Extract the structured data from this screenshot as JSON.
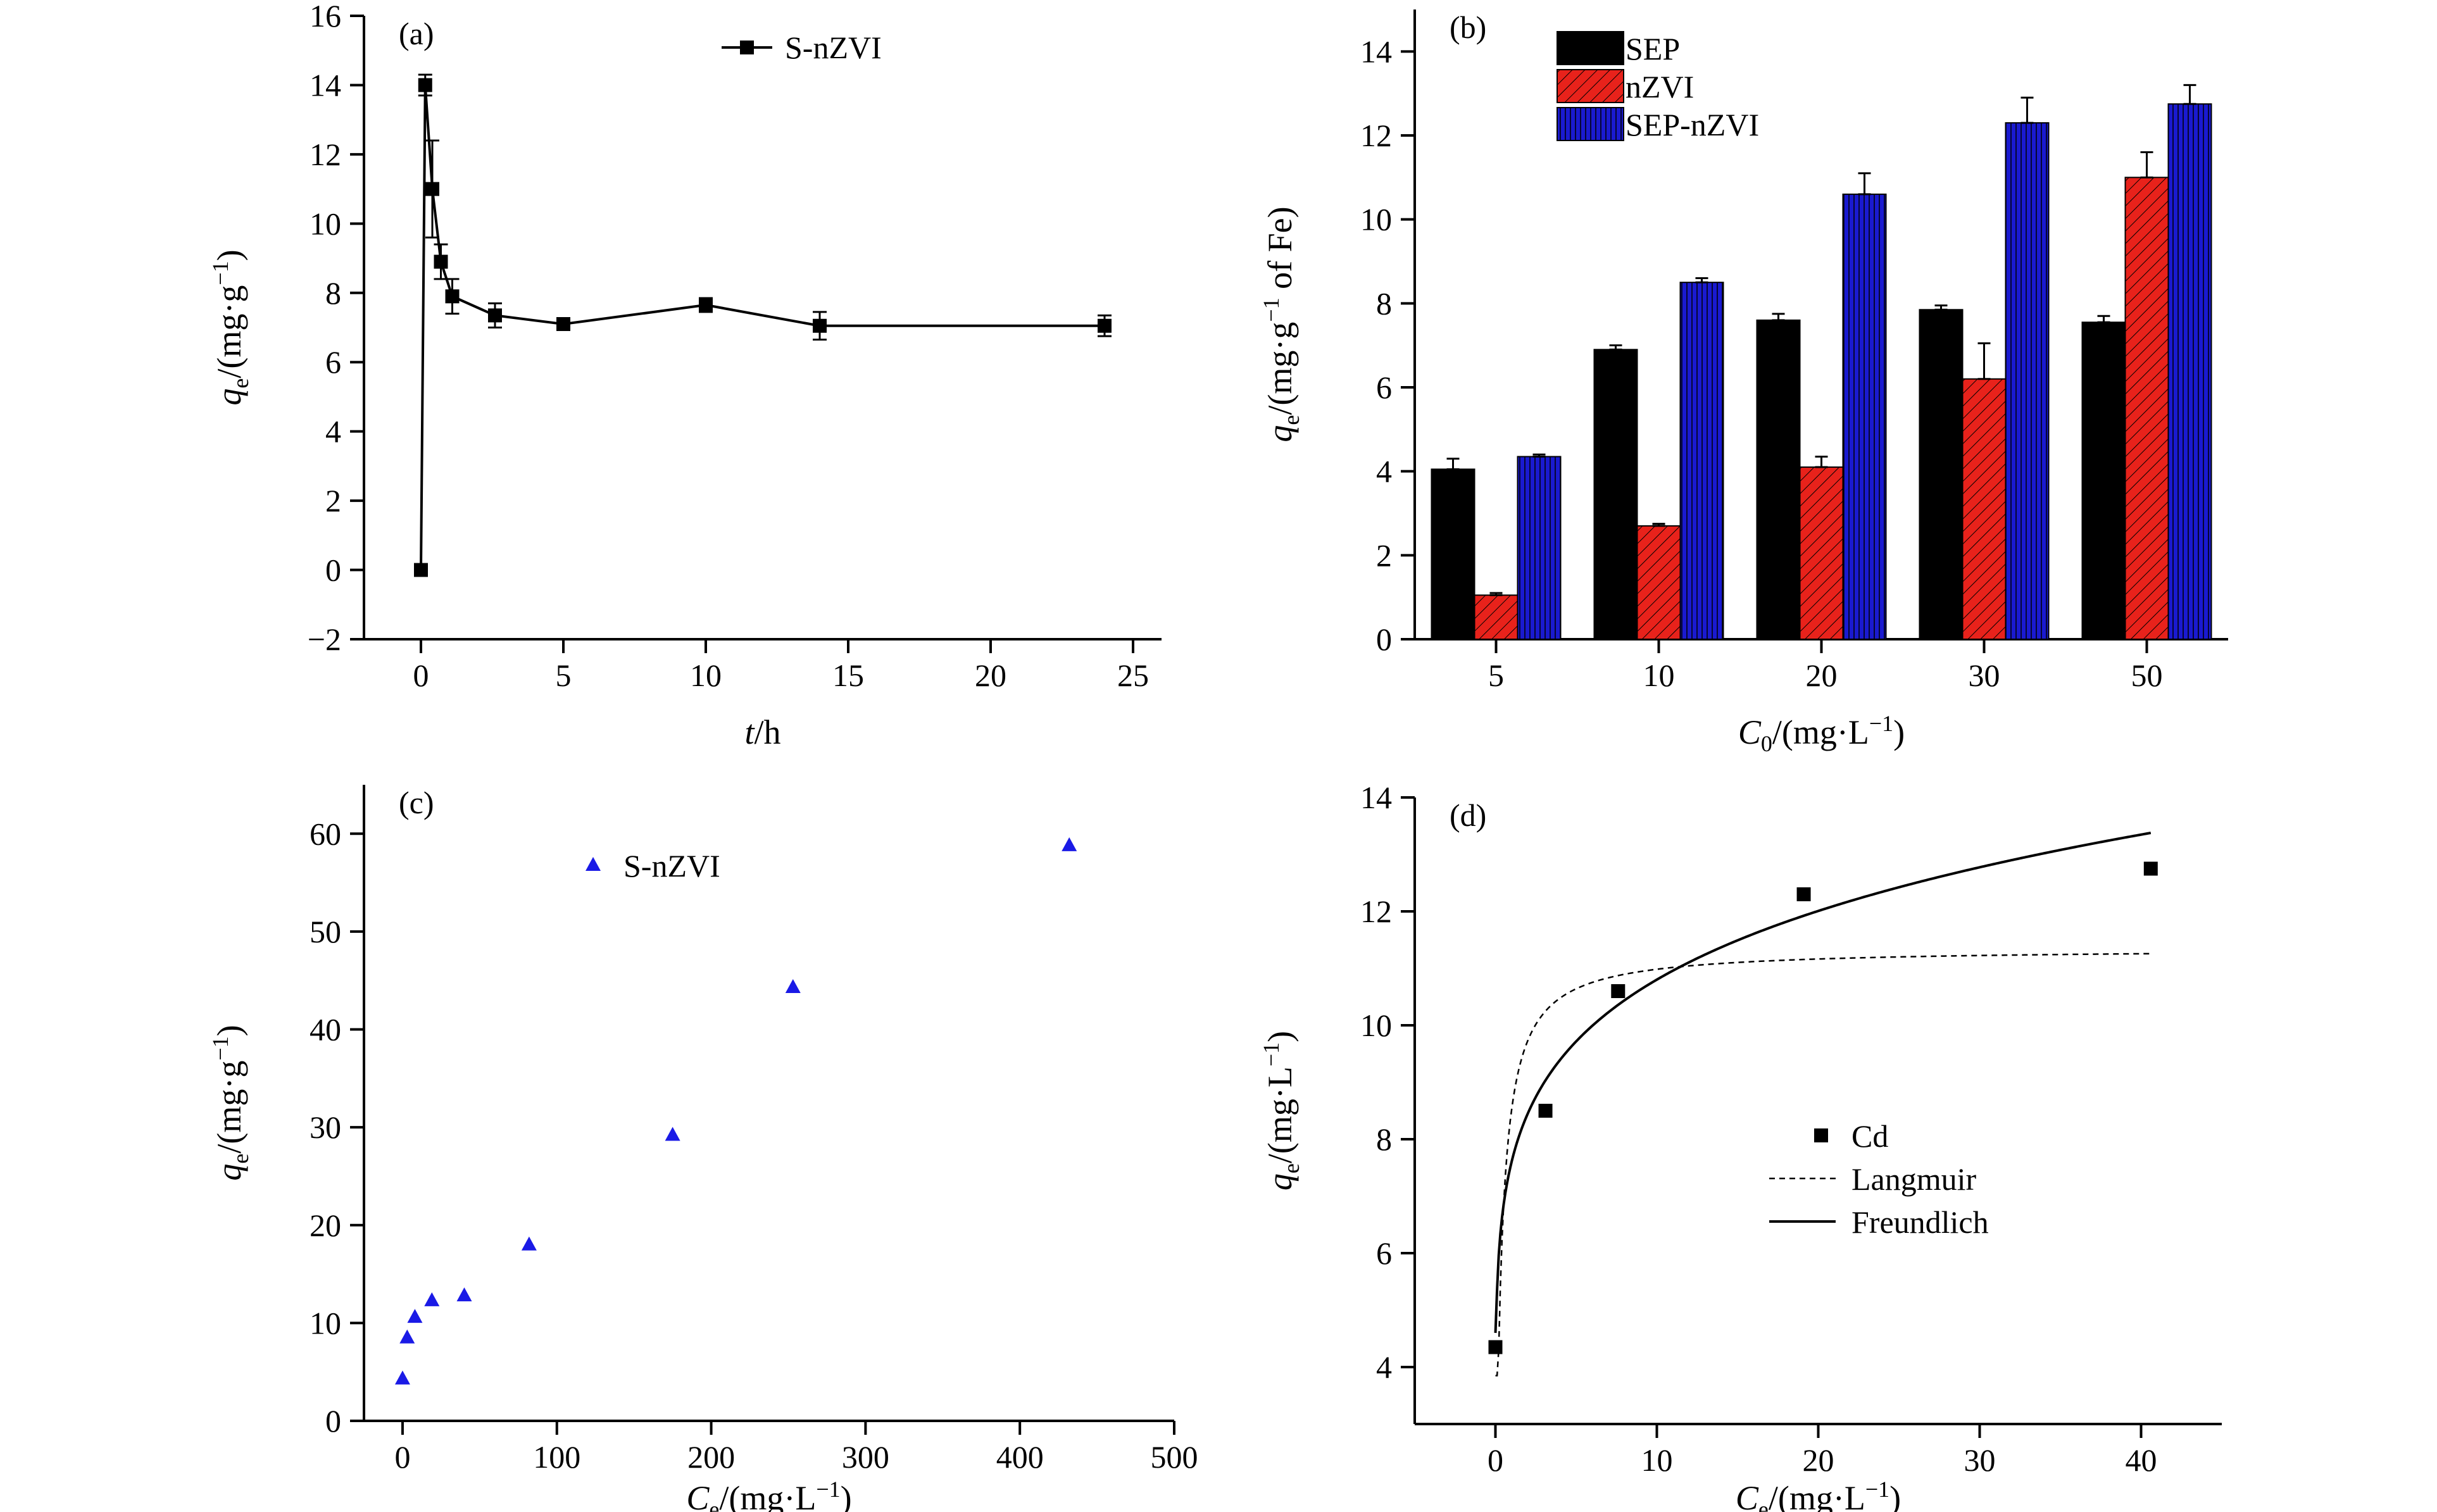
{
  "chart_data": [
    {
      "panel": "(a)",
      "type": "line",
      "xlabel_main": "t",
      "xlabel_rest": "/h",
      "ylabel_main": "q",
      "ylabel_sub": "e",
      "ylabel_rest": "/(mg·g",
      "ylabel_sup": "−1",
      "ylabel_end": ")",
      "xlim": [
        -2,
        26
      ],
      "ylim": [
        -2,
        16
      ],
      "xticks": [
        0,
        5,
        10,
        15,
        20,
        25
      ],
      "yticks": [
        -2,
        0,
        2,
        4,
        6,
        8,
        10,
        12,
        14,
        16
      ],
      "legend": "top-center",
      "series": [
        {
          "name": "S-nZVI",
          "marker": "square",
          "x": [
            0,
            0.15,
            0.4,
            0.7,
            1.1,
            2.6,
            5,
            10,
            14,
            24
          ],
          "y": [
            0,
            14.0,
            11.0,
            8.9,
            7.9,
            7.35,
            7.1,
            7.65,
            7.05,
            7.05
          ],
          "err": [
            0,
            0.3,
            1.4,
            0.5,
            0.5,
            0.35,
            0.1,
            0.2,
            0.4,
            0.3
          ]
        }
      ]
    },
    {
      "panel": "(b)",
      "type": "bar",
      "xlabel_main": "C",
      "xlabel_sub": "0",
      "xlabel_rest": "/(mg·L",
      "xlabel_sup": "−1",
      "xlabel_end": ")",
      "ylabel_main": "q",
      "ylabel_sub": "e",
      "ylabel_rest": "/(mg·g",
      "ylabel_sup": "−1",
      "ylabel_end": " of Fe)",
      "categories": [
        "5",
        "10",
        "20",
        "30",
        "50"
      ],
      "ylim": [
        0,
        15
      ],
      "yticks": [
        0,
        2,
        4,
        6,
        8,
        10,
        12,
        14
      ],
      "legend": "top-left",
      "colors": {
        "SEP": "#000000",
        "nZVI": "#e8221b",
        "SEP-nZVI": "#1a1ad0"
      },
      "series": [
        {
          "name": "SEP",
          "values": [
            4.05,
            6.9,
            7.6,
            7.85,
            7.55
          ],
          "err": [
            0.25,
            0.1,
            0.15,
            0.1,
            0.15
          ]
        },
        {
          "name": "nZVI",
          "values": [
            1.05,
            2.7,
            4.1,
            6.2,
            11.0
          ],
          "err": [
            0.05,
            0.05,
            0.25,
            0.85,
            0.6
          ]
        },
        {
          "name": "SEP-nZVI",
          "values": [
            4.35,
            8.5,
            10.6,
            12.3,
            12.75
          ],
          "err": [
            0.05,
            0.1,
            0.5,
            0.6,
            0.45
          ]
        }
      ]
    },
    {
      "panel": "(c)",
      "type": "scatter",
      "xlabel_main": "C",
      "xlabel_sub": "e",
      "xlabel_rest": "/(mg·L",
      "xlabel_sup": "−1",
      "xlabel_end": ")",
      "ylabel_main": "q",
      "ylabel_sub": "e",
      "ylabel_rest": "/(mg·g",
      "ylabel_sup": "−1",
      "ylabel_end": ")",
      "xlim": [
        -25,
        500
      ],
      "ylim": [
        0,
        65
      ],
      "xticks": [
        0,
        100,
        200,
        300,
        400,
        500
      ],
      "yticks": [
        0,
        10,
        20,
        30,
        40,
        50,
        60
      ],
      "legend": "top-center",
      "series": [
        {
          "name": "S-nZVI",
          "marker": "triangle",
          "color": "#1a1ae6",
          "x": [
            0,
            3,
            8,
            19,
            40,
            82,
            175,
            253,
            432
          ],
          "y": [
            4.3,
            8.5,
            10.6,
            12.3,
            12.8,
            18.0,
            29.2,
            44.3,
            58.8
          ]
        }
      ]
    },
    {
      "panel": "(d)",
      "type": "scatter",
      "xlabel_main": "C",
      "xlabel_sub": "e",
      "xlabel_rest": "/(mg·L",
      "xlabel_sup": "−1",
      "xlabel_end": ")",
      "ylabel_main": "q",
      "ylabel_sub": "e",
      "ylabel_rest": "/(mg·L",
      "ylabel_sup": "−1",
      "ylabel_end": ")",
      "xlim": [
        -5,
        45
      ],
      "ylim": [
        3,
        14
      ],
      "xticks": [
        0,
        10,
        20,
        30,
        40
      ],
      "yticks": [
        4,
        6,
        8,
        10,
        12,
        14
      ],
      "legend": "center",
      "series": [
        {
          "name": "Cd",
          "marker": "square",
          "x": [
            0,
            3.1,
            7.6,
            19.1,
            40.6
          ],
          "y": [
            4.35,
            8.5,
            10.6,
            12.3,
            12.75
          ]
        },
        {
          "name": "Langmuir",
          "style": "dashed",
          "model": "langmuir",
          "qmax": 11.35,
          "KL": 3.0
        },
        {
          "name": "Freundlich",
          "style": "solid",
          "model": "freundlich",
          "KF": 7.6,
          "n": 6.55
        }
      ]
    }
  ]
}
